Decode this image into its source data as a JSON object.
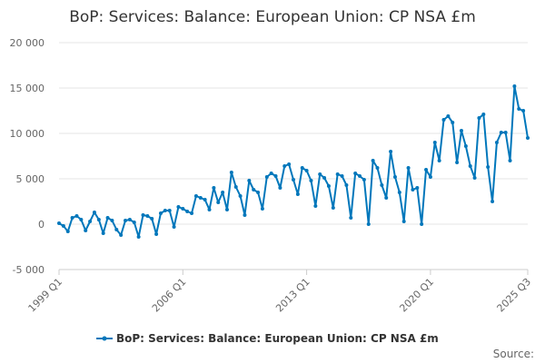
{
  "chart_data": {
    "type": "line",
    "title": "BoP: Services: Balance: European Union: CP NSA £m",
    "xlabel": "",
    "ylabel": "",
    "ylim": [
      -5000,
      20000
    ],
    "yticks": [
      -5000,
      0,
      5000,
      10000,
      15000,
      20000
    ],
    "ytick_labels": [
      "-5 000",
      "0",
      "5 000",
      "10 000",
      "15 000",
      "20 000"
    ],
    "xtick_labels": [
      "1999 Q1",
      "2006 Q1",
      "2013 Q1",
      "2020 Q1",
      "2025 Q3"
    ],
    "xtick_indices": [
      0,
      28,
      56,
      84,
      106
    ],
    "grid": true,
    "legend_position": "bottom",
    "series": [
      {
        "name": "BoP: Services: Balance: European Union: CP NSA £m",
        "color": "#0077bb",
        "values": [
          100,
          -200,
          -800,
          700,
          900,
          500,
          -700,
          300,
          1300,
          500,
          -1000,
          700,
          400,
          -600,
          -1200,
          400,
          500,
          200,
          -1400,
          1000,
          900,
          600,
          -1100,
          1200,
          1500,
          1500,
          -300,
          1900,
          1700,
          1400,
          1200,
          3100,
          2900,
          2700,
          1600,
          4000,
          2400,
          3500,
          1600,
          5700,
          4100,
          3100,
          1000,
          4800,
          3800,
          3500,
          1700,
          5200,
          5600,
          5300,
          4000,
          6400,
          6600,
          4900,
          3300,
          6200,
          5900,
          4800,
          2000,
          5500,
          5100,
          4200,
          1800,
          5500,
          5300,
          4300,
          700,
          5600,
          5300,
          4900,
          0,
          7000,
          6200,
          4300,
          2900,
          8000,
          5200,
          3500,
          300,
          6200,
          3800,
          4000,
          0,
          6000,
          5200,
          9000,
          7000,
          11500,
          11900,
          11200,
          6800,
          10300,
          8600,
          6400,
          5100,
          11700,
          12100,
          6300,
          2500,
          9000,
          10100,
          10100,
          7000,
          15200,
          12700,
          12500,
          9500
        ]
      }
    ]
  },
  "source_label": "Source:"
}
